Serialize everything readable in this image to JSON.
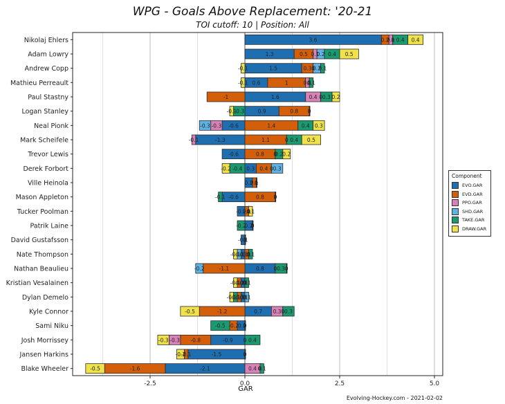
{
  "title": "WPG - Goals Above Replacement: '20-21",
  "subtitle": "TOI cutoff: 10 | Position: All",
  "credit": "Evolving-Hockey.com - 2021-02-02",
  "colors": {
    "EVO.GAR": "#1f6fb0",
    "EVD.GAR": "#d45f0a",
    "PPO.GAR": "#d982b8",
    "SHD.GAR": "#5fb3e4",
    "TAKE.GAR": "#1a9a70",
    "DRAW.GAR": "#efe24a"
  },
  "chart_data": {
    "type": "bar",
    "orientation": "horizontal",
    "stacked": "diverging",
    "title": "WPG - Goals Above Replacement: '20-21",
    "subtitle": "TOI cutoff: 10 | Position: All",
    "xlabel": "GAR",
    "ylabel": "",
    "xlim": [
      -4.55,
      5.2
    ],
    "xticks": [
      -2.5,
      0.0,
      2.5,
      5.0
    ],
    "xtick_labels": [
      "-2.5",
      "0.0",
      "2.5",
      "5.0"
    ],
    "grid": "vertical",
    "legend": {
      "title": "Component",
      "position": "right",
      "entries": [
        "EVO.GAR",
        "EVD.GAR",
        "PPO.GAR",
        "SHD.GAR",
        "TAKE.GAR",
        "DRAW.GAR"
      ]
    },
    "components": [
      "EVO.GAR",
      "EVD.GAR",
      "PPO.GAR",
      "SHD.GAR",
      "TAKE.GAR",
      "DRAW.GAR"
    ],
    "categories": [
      "Nikolaj Ehlers",
      "Adam Lowry",
      "Andrew Copp",
      "Mathieu Perreault",
      "Paul Stastny",
      "Logan Stanley",
      "Neal Pionk",
      "Mark Scheifele",
      "Trevor Lewis",
      "Derek Forbort",
      "Ville Heinola",
      "Mason Appleton",
      "Tucker Poolman",
      "Patrik Laine",
      "David Gustafsson",
      "Nate Thompson",
      "Nathan Beaulieu",
      "Kristian Vesalainen",
      "Dylan Demelo",
      "Kyle Connor",
      "Sami Niku",
      "Josh Morrissey",
      "Jansen Harkins",
      "Blake Wheeler"
    ],
    "series": [
      {
        "name": "EVO.GAR",
        "values": [
          3.6,
          1.3,
          1.5,
          0.6,
          1.6,
          0.9,
          -0.6,
          -1.3,
          -0.6,
          0.3,
          0.2,
          -0.6,
          -0.2,
          0.2,
          -0.1,
          -0.1,
          0.8,
          -0.1,
          -0.1,
          0.7,
          -0.2,
          -0.9,
          -1.5,
          -2.1
        ]
      },
      {
        "name": "EVD.GAR",
        "values": [
          0.2,
          0.5,
          0.3,
          1.0,
          -1.0,
          0.8,
          1.4,
          1.1,
          0.8,
          0.4,
          0.1,
          0.8,
          0.1,
          0.0,
          0.0,
          0.1,
          -1.1,
          -0.1,
          -0.1,
          -1.2,
          -0.2,
          -0.8,
          -0.1,
          -1.6
        ]
      },
      {
        "name": "PPO.GAR",
        "values": [
          0.1,
          0.1,
          0.0,
          0.1,
          0.4,
          0.0,
          -0.3,
          -0.1,
          0.0,
          0.0,
          0.0,
          0.0,
          0.0,
          0.0,
          0.0,
          0.0,
          0.0,
          0.0,
          0.0,
          0.3,
          0.0,
          -0.3,
          0.0,
          0.4
        ]
      },
      {
        "name": "SHD.GAR",
        "values": [
          0.0,
          0.2,
          0.2,
          0.0,
          0.0,
          0.0,
          -0.3,
          0.0,
          0.0,
          0.3,
          0.0,
          0.0,
          0.0,
          0.0,
          0.0,
          -0.1,
          -0.2,
          0.0,
          0.1,
          0.0,
          0.0,
          0.0,
          0.0,
          0.0
        ]
      },
      {
        "name": "TAKE.GAR",
        "values": [
          0.4,
          0.4,
          0.1,
          0.1,
          0.3,
          -0.3,
          0.4,
          0.4,
          0.2,
          -0.4,
          0.0,
          -0.1,
          0.0,
          -0.2,
          0.0,
          0.1,
          0.3,
          0.1,
          -0.1,
          0.3,
          -0.5,
          0.4,
          0.0,
          0.1
        ]
      },
      {
        "name": "DRAW.GAR",
        "values": [
          0.4,
          0.5,
          -0.1,
          -0.1,
          0.2,
          -0.1,
          0.3,
          0.5,
          0.2,
          -0.2,
          0.0,
          0.0,
          0.1,
          0.0,
          0.0,
          -0.1,
          0.0,
          -0.1,
          -0.1,
          -0.5,
          0.0,
          -0.3,
          -0.2,
          -0.5
        ]
      }
    ]
  }
}
